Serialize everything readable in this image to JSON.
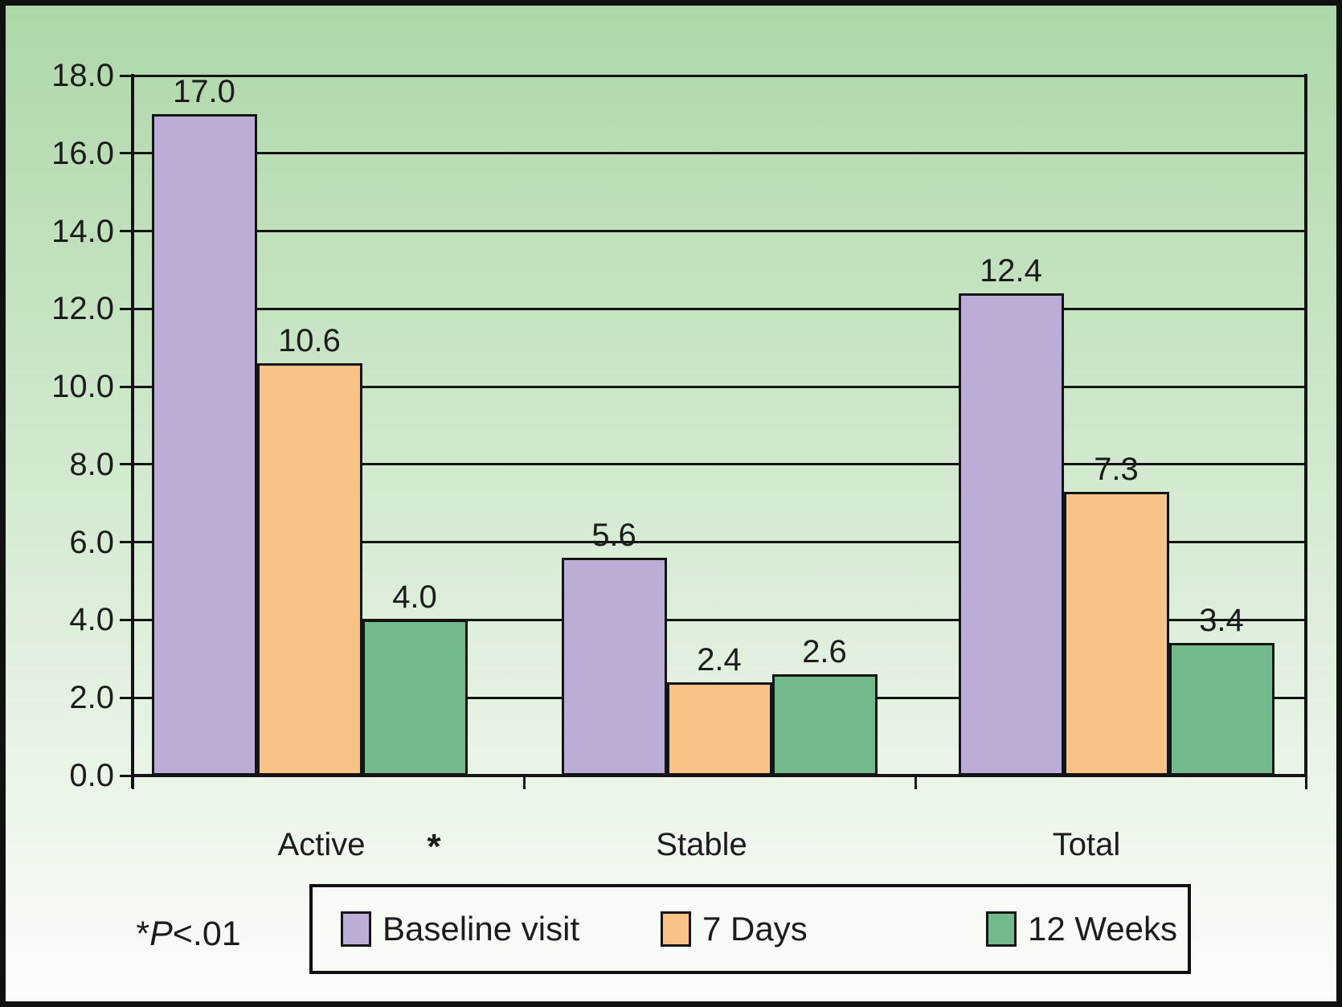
{
  "figure": {
    "note": {
      "prefix": "*",
      "p": "P",
      "rest": "<.01"
    },
    "colors": {
      "background_top": "#aed7a9",
      "background_bottom": "#fbfdfa",
      "line": "#141414",
      "legend_bg": "#f7faf5",
      "text": "#1c1c1c"
    }
  },
  "chart_data": {
    "type": "bar",
    "title": "",
    "xlabel": "",
    "ylabel": "",
    "grid": true,
    "legend_position": "bottom",
    "ylim": [
      0,
      18
    ],
    "y_ticks": [
      "0.0",
      "2.0",
      "4.0",
      "6.0",
      "8.0",
      "10.0",
      "12.0",
      "14.0",
      "16.0",
      "18.0"
    ],
    "categories": [
      "Active",
      "Stable",
      "Total"
    ],
    "series": [
      {
        "name": "Baseline visit",
        "color": "#bcadd6",
        "values": [
          17.0,
          5.6,
          12.4
        ]
      },
      {
        "name": "7 Days",
        "color": "#f9c286",
        "values": [
          10.6,
          2.4,
          7.3
        ]
      },
      {
        "name": "12 Weeks",
        "color": "#73b98b",
        "values": [
          4.0,
          2.6,
          3.4
        ]
      }
    ],
    "value_labels": [
      [
        "17.0",
        "5.6",
        "12.4"
      ],
      [
        "10.6",
        "2.4",
        "7.3"
      ],
      [
        "4.0",
        "2.6",
        "3.4"
      ]
    ],
    "significance": {
      "category": "Active",
      "symbol": "*"
    }
  }
}
